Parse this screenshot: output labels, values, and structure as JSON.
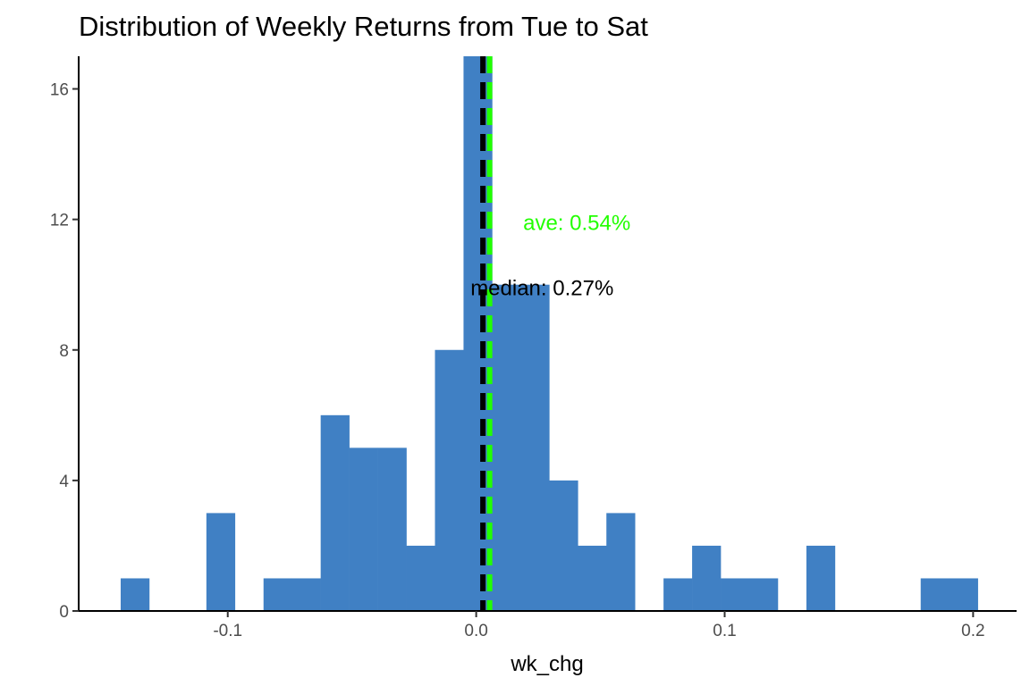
{
  "chart_data": {
    "type": "bar",
    "subtype": "histogram",
    "title": "Distribution of Weekly Returns from Tue to Sat",
    "xlabel": "wk_chg",
    "ylabel": "",
    "xlim": [
      -0.16,
      0.2175
    ],
    "ylim": [
      0,
      17
    ],
    "x_ticks": [
      -0.1,
      0.0,
      0.1,
      0.2
    ],
    "x_tick_labels": [
      "-0.1",
      "0.0",
      "0.1",
      "0.2"
    ],
    "y_ticks": [
      0,
      4,
      8,
      12,
      16
    ],
    "y_tick_labels": [
      "0",
      "4",
      "8",
      "12",
      "16"
    ],
    "grid": false,
    "bar_color": "#4080c4",
    "bins": [
      {
        "x0": -0.1431,
        "x1": -0.1316,
        "count": 1
      },
      {
        "x0": -0.1316,
        "x1": -0.1201,
        "count": 0
      },
      {
        "x0": -0.1201,
        "x1": -0.1086,
        "count": 0
      },
      {
        "x0": -0.1086,
        "x1": -0.0971,
        "count": 3
      },
      {
        "x0": -0.0971,
        "x1": -0.0856,
        "count": 0
      },
      {
        "x0": -0.0856,
        "x1": -0.0741,
        "count": 1
      },
      {
        "x0": -0.0741,
        "x1": -0.0626,
        "count": 1
      },
      {
        "x0": -0.0626,
        "x1": -0.0511,
        "count": 6
      },
      {
        "x0": -0.0511,
        "x1": -0.0396,
        "count": 5
      },
      {
        "x0": -0.0396,
        "x1": -0.0281,
        "count": 5
      },
      {
        "x0": -0.0281,
        "x1": -0.0166,
        "count": 2
      },
      {
        "x0": -0.0166,
        "x1": -0.0051,
        "count": 8
      },
      {
        "x0": -0.0051,
        "x1": 0.0064,
        "count": 17
      },
      {
        "x0": 0.0064,
        "x1": 0.0179,
        "count": 10
      },
      {
        "x0": 0.0179,
        "x1": 0.0294,
        "count": 10
      },
      {
        "x0": 0.0294,
        "x1": 0.0409,
        "count": 4
      },
      {
        "x0": 0.0409,
        "x1": 0.0524,
        "count": 2
      },
      {
        "x0": 0.0524,
        "x1": 0.0639,
        "count": 3
      },
      {
        "x0": 0.0639,
        "x1": 0.0754,
        "count": 0
      },
      {
        "x0": 0.0754,
        "x1": 0.0869,
        "count": 1
      },
      {
        "x0": 0.0869,
        "x1": 0.0984,
        "count": 2
      },
      {
        "x0": 0.0984,
        "x1": 0.1099,
        "count": 1
      },
      {
        "x0": 0.1099,
        "x1": 0.1214,
        "count": 1
      },
      {
        "x0": 0.1214,
        "x1": 0.1329,
        "count": 0
      },
      {
        "x0": 0.1329,
        "x1": 0.1444,
        "count": 2
      },
      {
        "x0": 0.1444,
        "x1": 0.1559,
        "count": 0
      },
      {
        "x0": 0.1559,
        "x1": 0.1674,
        "count": 0
      },
      {
        "x0": 0.1674,
        "x1": 0.1789,
        "count": 0
      },
      {
        "x0": 0.1789,
        "x1": 0.1904,
        "count": 1
      },
      {
        "x0": 0.1904,
        "x1": 0.2019,
        "count": 1
      }
    ],
    "reference_lines": [
      {
        "name": "median",
        "value": 0.0027,
        "color": "#000000",
        "style": "dashed",
        "label": "median: 0.27%",
        "label_x": 0.0265,
        "label_y": 9.9
      },
      {
        "name": "ave",
        "value": 0.0054,
        "color": "#22ff00",
        "style": "dashed",
        "label": "ave: 0.54%",
        "label_x": 0.0405,
        "label_y": 11.9
      }
    ]
  }
}
